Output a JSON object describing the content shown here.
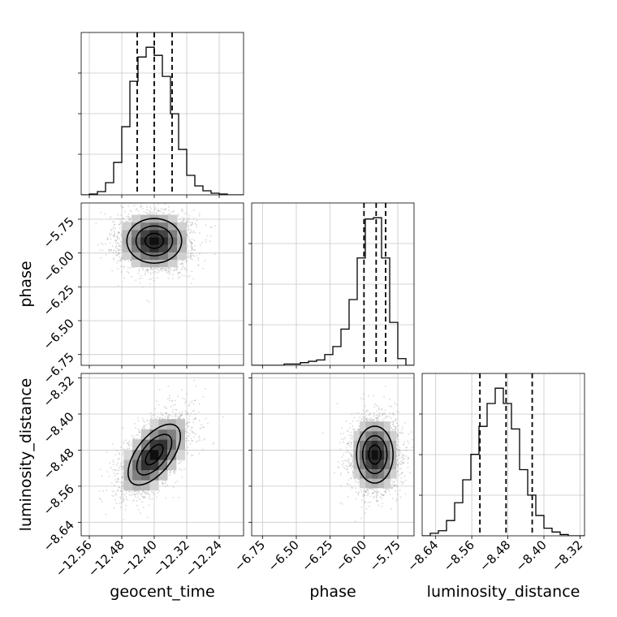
{
  "chart_data": {
    "type": "corner",
    "parameters": [
      "geocent_time",
      "phase",
      "luminosity_distance"
    ],
    "grid": true,
    "quantile_style": "dashed",
    "ranges": {
      "geocent_time": [
        -12.58,
        -12.18
      ],
      "phase": [
        -6.83,
        -5.63
      ],
      "luminosity_distance": [
        -8.67,
        -8.31
      ]
    },
    "ticks": {
      "geocent_time": [
        -12.56,
        -12.48,
        -12.4,
        -12.32,
        -12.24
      ],
      "phase": [
        -6.75,
        -6.5,
        -6.25,
        -6.0,
        -5.75
      ],
      "luminosity_distance": [
        -8.64,
        -8.56,
        -8.48,
        -8.4,
        -8.32
      ]
    },
    "tick_labels": {
      "geocent_time": [
        "−12.56",
        "−12.48",
        "−12.40",
        "−12.32",
        "−12.24"
      ],
      "phase": [
        "−6.75",
        "−6.50",
        "−6.25",
        "−6.00",
        "−5.75"
      ],
      "luminosity_distance": [
        "−8.64",
        "−8.56",
        "−8.48",
        "−8.40",
        "−8.32"
      ]
    },
    "marginals": {
      "geocent_time": {
        "bin_edges": [
          -12.58,
          -12.56,
          -12.54,
          -12.52,
          -12.5,
          -12.48,
          -12.46,
          -12.44,
          -12.42,
          -12.4,
          -12.38,
          -12.36,
          -12.34,
          -12.32,
          -12.3,
          -12.28,
          -12.26,
          -12.24,
          -12.22,
          -12.2,
          -12.18
        ],
        "counts": [
          0.0,
          0.5,
          2.0,
          7.5,
          20.0,
          42.0,
          70.0,
          85.0,
          91.0,
          86.0,
          73.0,
          50.0,
          28.0,
          12.0,
          5.5,
          2.5,
          1.0,
          0.5,
          0.0,
          0.0
        ],
        "quantiles": [
          -12.442,
          -12.4,
          -12.356
        ]
      },
      "phase": {
        "bin_edges": [
          -6.83,
          -6.77,
          -6.71,
          -6.65,
          -6.59,
          -6.53,
          -6.47,
          -6.41,
          -6.35,
          -6.29,
          -6.23,
          -6.17,
          -6.11,
          -6.05,
          -5.99,
          -5.93,
          -5.87,
          -5.81,
          -5.75,
          -5.69,
          -5.63
        ],
        "counts": [
          0.0,
          0.0,
          0.0,
          0.0,
          0.5,
          0.5,
          1.0,
          1.5,
          2.0,
          4.0,
          7.0,
          13.5,
          24.5,
          40.0,
          54.5,
          55.0,
          40.0,
          16.0,
          2.5,
          0.0
        ],
        "quantiles": [
          -6.0,
          -5.91,
          -5.84
        ]
      },
      "luminosity_distance": {
        "bin_edges": [
          -8.67,
          -8.652,
          -8.634,
          -8.616,
          -8.598,
          -8.58,
          -8.562,
          -8.544,
          -8.526,
          -8.508,
          -8.49,
          -8.472,
          -8.454,
          -8.436,
          -8.418,
          -8.4,
          -8.382,
          -8.364,
          -8.346,
          -8.328,
          -8.31
        ],
        "counts": [
          0.0,
          1.0,
          2.0,
          6.0,
          13.0,
          22.0,
          32.0,
          43.0,
          52.0,
          58.0,
          52.0,
          42.0,
          26.0,
          16.0,
          8.0,
          3.0,
          1.5,
          0.5,
          0.0,
          0.0
        ],
        "quantiles": [
          -8.542,
          -8.484,
          -8.426
        ]
      }
    },
    "joint": [
      {
        "x": "geocent_time",
        "y": "phase",
        "mean": [
          -12.4,
          -5.91
        ],
        "sigma": [
          0.045,
          0.11
        ],
        "correlation": 0.0,
        "density_levels": [
          0.118,
          0.393,
          0.675,
          0.865
        ]
      },
      {
        "x": "geocent_time",
        "y": "luminosity_distance",
        "mean": [
          -12.4,
          -8.49
        ],
        "sigma": [
          0.043,
          0.045
        ],
        "correlation": 0.6,
        "density_levels": [
          0.118,
          0.393,
          0.675,
          0.865
        ]
      },
      {
        "x": "phase",
        "y": "luminosity_distance",
        "mean": [
          -5.92,
          -8.49
        ],
        "sigma": [
          0.09,
          0.042
        ],
        "correlation": 0.0,
        "density_levels": [
          0.118,
          0.393,
          0.675,
          0.865
        ]
      }
    ]
  }
}
